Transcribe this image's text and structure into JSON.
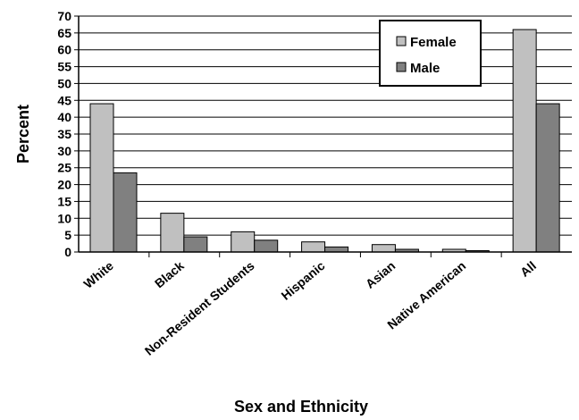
{
  "chart_data": {
    "type": "bar",
    "title": "",
    "xlabel": "Sex and Ethnicity",
    "ylabel": "Percent",
    "ylim": [
      0,
      70
    ],
    "ytick_step": 5,
    "grid": true,
    "legend_position": "top-right",
    "categories": [
      "White",
      "Black",
      "Non-Resident  Students",
      "Hispanic",
      "Asian",
      "Native American",
      "All"
    ],
    "series": [
      {
        "name": "Female",
        "color": "#c0c0c0",
        "values": [
          44,
          11.5,
          6,
          3,
          2.2,
          0.8,
          66
        ]
      },
      {
        "name": "Male",
        "color": "#808080",
        "values": [
          23.5,
          4.5,
          3.5,
          1.5,
          0.8,
          0.4,
          44
        ]
      }
    ]
  }
}
